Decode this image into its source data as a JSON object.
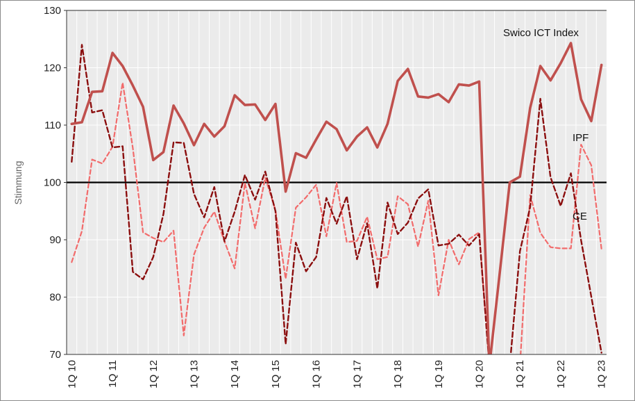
{
  "chart_data": {
    "type": "line",
    "ylabel": "Stimmung",
    "ylim": [
      70,
      130
    ],
    "yticks": [
      70,
      80,
      90,
      100,
      110,
      120,
      130
    ],
    "reference_line": 100,
    "x_labels": [
      "1Q 10",
      "1Q 11",
      "1Q 12",
      "1Q 13",
      "1Q 14",
      "1Q 15",
      "1Q 16",
      "1Q 17",
      "1Q 18",
      "1Q 19",
      "1Q 20",
      "1Q 21",
      "1Q 22",
      "1Q 23"
    ],
    "x_label_quarter_index": [
      0,
      4,
      8,
      12,
      16,
      20,
      24,
      28,
      32,
      36,
      40,
      44,
      48,
      52
    ],
    "quarters": 53,
    "grid": true,
    "colors": {
      "index": "#c0504d",
      "ipf": "#f26b6b",
      "ce": "#8b0e0e",
      "reference": "#000000",
      "plot_bg": "#ebebeb",
      "grid": "#ffffff"
    },
    "annotations": [
      {
        "text": "Swico ICT Index",
        "series": "index"
      },
      {
        "text": "IPF",
        "series": "ipf"
      },
      {
        "text": "CE",
        "series": "ce"
      }
    ],
    "series": [
      {
        "name": "Swico ICT Index",
        "style": "solid",
        "values": [
          110.2,
          110.5,
          115.8,
          115.9,
          122.6,
          120.3,
          116.9,
          113.2,
          103.9,
          105.3,
          113.4,
          110.3,
          106.5,
          110.2,
          108.0,
          109.8,
          115.2,
          113.5,
          113.6,
          110.9,
          113.7,
          98.4,
          105.1,
          104.3,
          107.5,
          110.6,
          109.3,
          105.6,
          108.0,
          109.6,
          106.1,
          110.2,
          117.7,
          119.8,
          115.0,
          114.8,
          115.4,
          114.0,
          117.1,
          116.9,
          117.6,
          68.0,
          84.0,
          100.0,
          101.0,
          113.0,
          120.3,
          117.8,
          120.8,
          124.3,
          114.5,
          110.7,
          120.5
        ]
      },
      {
        "name": "IPF",
        "style": "dashed",
        "values": [
          86.1,
          91.5,
          104.0,
          103.3,
          106.2,
          117.4,
          106.0,
          91.3,
          90.3,
          89.6,
          91.6,
          73.3,
          87.4,
          92.1,
          94.9,
          89.7,
          85.0,
          99.9,
          92.0,
          100.8,
          95.2,
          83.2,
          95.6,
          97.4,
          99.6,
          90.6,
          99.9,
          89.6,
          89.8,
          94.0,
          86.6,
          87.0,
          97.6,
          96.2,
          88.8,
          96.8,
          80.3,
          90.0,
          85.7,
          90.1,
          91.3,
          68.0,
          68.0,
          68.0,
          68.0,
          97.8,
          91.2,
          88.7,
          88.5,
          88.5,
          106.6,
          103.0,
          88.4
        ]
      },
      {
        "name": "CE",
        "style": "dashed",
        "values": [
          103.6,
          124.0,
          112.2,
          112.6,
          106.1,
          106.3,
          84.4,
          83.1,
          87.0,
          94.5,
          107.0,
          106.9,
          98.0,
          93.9,
          99.2,
          89.7,
          94.9,
          101.3,
          97.0,
          101.9,
          95.0,
          71.8,
          89.5,
          84.5,
          87.0,
          97.3,
          92.8,
          97.6,
          86.6,
          92.9,
          81.5,
          96.5,
          91.0,
          93.0,
          97.2,
          98.8,
          89.0,
          89.3,
          90.9,
          89.0,
          91.0,
          68.0,
          68.0,
          68.0,
          88.0,
          95.7,
          114.6,
          100.9,
          95.9,
          101.6,
          89.9,
          80.1,
          70.3
        ]
      }
    ]
  }
}
